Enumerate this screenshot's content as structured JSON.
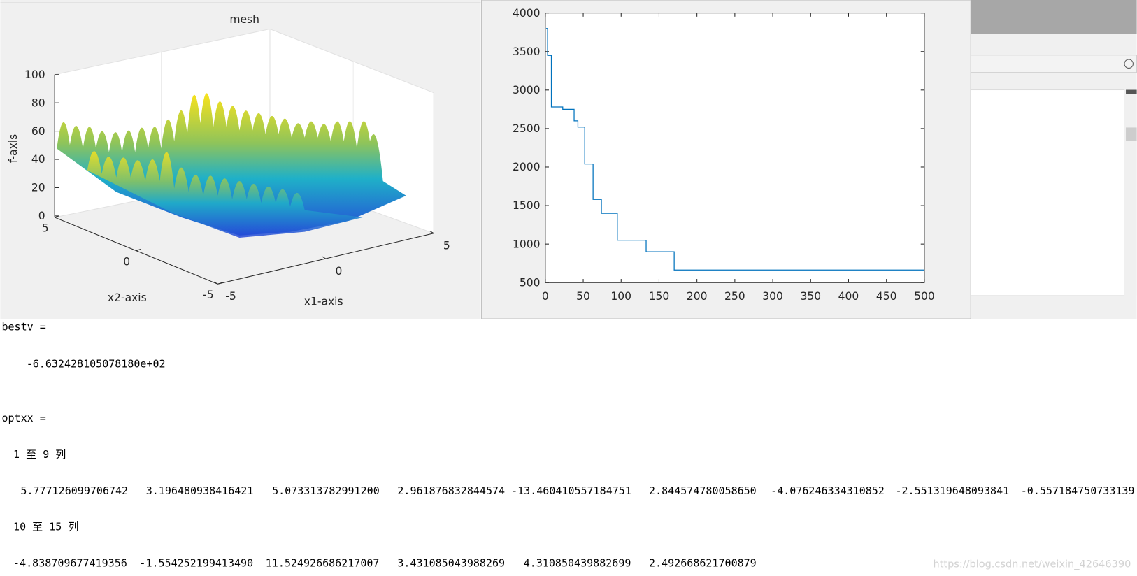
{
  "chart_data": [
    {
      "type": "surface",
      "title": "mesh",
      "xlabel": "x1-axis",
      "ylabel": "x2-axis",
      "zlabel": "f-axis",
      "xticks": [
        -5,
        0,
        5
      ],
      "yticks": [
        -5,
        0,
        5
      ],
      "zticks": [
        0,
        20,
        40,
        60,
        80,
        100
      ],
      "xlim": [
        -5,
        5
      ],
      "ylim": [
        -5,
        5
      ],
      "zlim": [
        0,
        100
      ]
    },
    {
      "type": "line",
      "color": "#0072bd",
      "x": [
        1,
        3,
        3,
        8,
        8,
        23,
        23,
        38,
        38,
        43,
        43,
        52,
        52,
        63,
        63,
        74,
        74,
        95,
        95,
        133,
        133,
        170,
        170,
        500
      ],
      "values": [
        3800,
        3800,
        3450,
        3450,
        2780,
        2780,
        2750,
        2750,
        2600,
        2600,
        2520,
        2520,
        2040,
        2040,
        1580,
        1580,
        1400,
        1400,
        1050,
        1050,
        900,
        900,
        663,
        663
      ],
      "xlim": [
        0,
        500
      ],
      "ylim": [
        500,
        4000
      ],
      "xticks": [
        0,
        50,
        100,
        150,
        200,
        250,
        300,
        350,
        400,
        450,
        500
      ],
      "yticks": [
        500,
        1000,
        1500,
        2000,
        2500,
        3000,
        3500,
        4000
      ]
    }
  ],
  "console": {
    "bestv_label": "bestv =",
    "bestv": "-6.632428105078180e+02",
    "optxx_label": "optxx =",
    "block1_header": "1 至 9 列",
    "block1": [
      "5.777126099706742",
      "3.196480938416421",
      "5.073313782991200",
      "2.961876832844574",
      "-13.460410557184751",
      "2.844574780058650",
      "-4.076246334310852",
      "-2.551319648093841",
      "-0.557184750733139"
    ],
    "block2_header": "10 至 15 列",
    "block2": [
      "-4.838709677419356",
      "-1.554252199413490",
      "11.524926686217007",
      "3.431085043988269",
      "4.310850439882699",
      "2.492668621700879"
    ]
  },
  "watermark": "https://blog.csdn.net/weixin_42646390"
}
